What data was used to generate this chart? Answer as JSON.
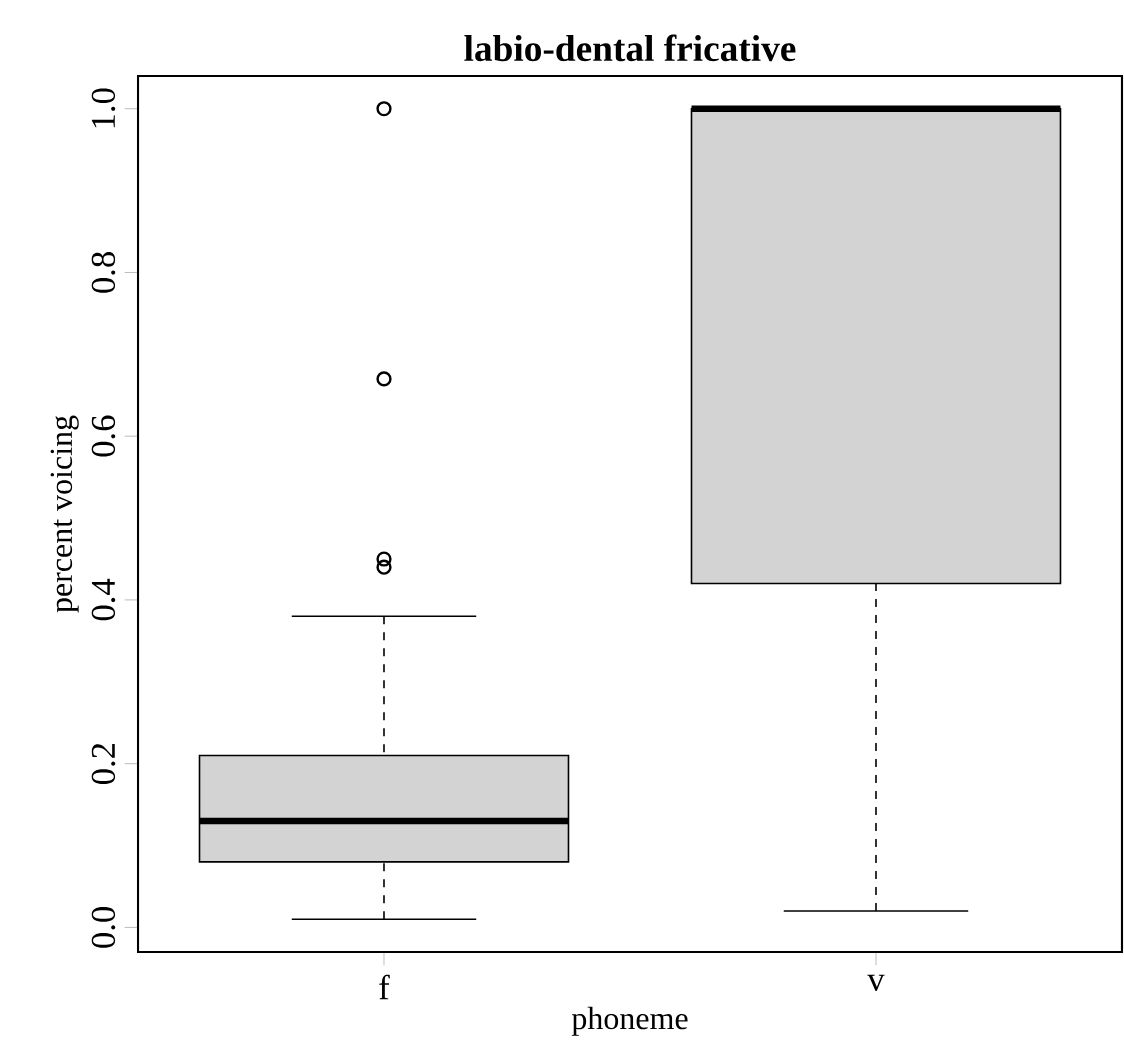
{
  "chart_data": {
    "type": "box",
    "title": "labio-dental fricative",
    "xlabel": "phoneme",
    "ylabel": "percent voicing",
    "categories": [
      "f",
      "v"
    ],
    "color": "#d3d3d3",
    "marker": "circle",
    "boxes": [
      {
        "low": 0.01,
        "q1": 0.08,
        "median": 0.13,
        "q3": 0.21,
        "high": 0.38,
        "outliers": [
          0.44,
          0.45,
          0.67,
          1.0
        ]
      },
      {
        "low": 0.02,
        "q1": 0.42,
        "median": 1.0,
        "q3": 1.0,
        "high": 1.0
      }
    ],
    "ylim": [
      -0.03,
      1.04
    ],
    "yticks": [
      {
        "value": 0,
        "label": "0.0"
      },
      {
        "value": 0.2,
        "label": "0.2"
      },
      {
        "value": 0.4,
        "label": "0.4"
      },
      {
        "value": 0.6,
        "label": "0.6"
      },
      {
        "value": 0.8,
        "label": "0.8"
      },
      {
        "value": 1.0,
        "label": "1.0"
      }
    ]
  }
}
